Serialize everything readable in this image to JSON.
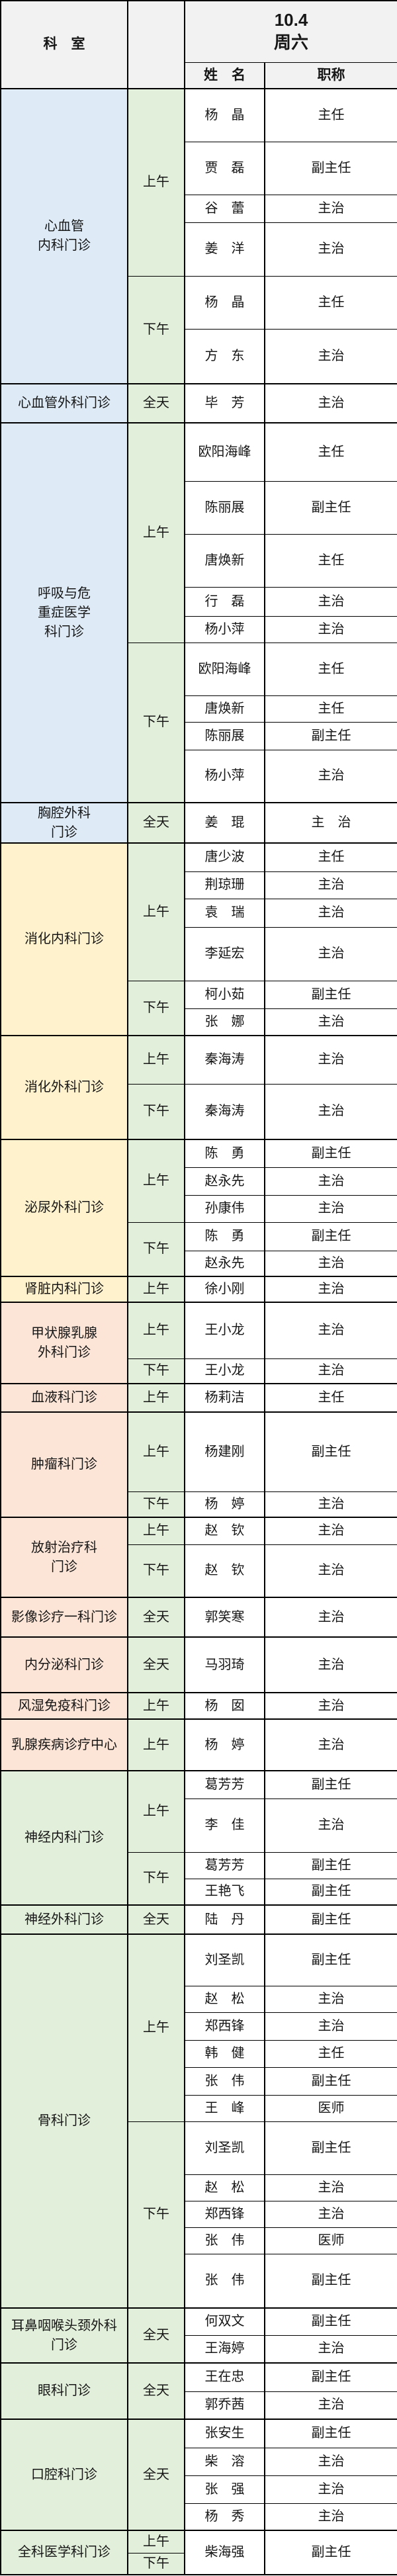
{
  "header": {
    "dept_col": "科　室",
    "date": "10.4",
    "weekday": "周六",
    "name_col": "姓　名",
    "title_col": "职称"
  },
  "colors": {
    "blue": "#DEEBF7",
    "yellow": "#FFF2CC",
    "orange": "#FCE4D6",
    "green": "#E2EFDA",
    "header_gray": "#F2F2F2",
    "border": "#000000"
  },
  "departments": [
    {
      "name": "心血管\n内科门诊",
      "color": "blue",
      "sessions": [
        {
          "time": "上午",
          "doctors": [
            {
              "name": "杨　晶",
              "title": "主任",
              "h": 80
            },
            {
              "name": "贾　磊",
              "title": "副主任",
              "h": 80
            },
            {
              "name": "谷　蕾",
              "title": "主治",
              "h": 42
            },
            {
              "name": "姜　洋",
              "title": "主治",
              "h": 81
            }
          ]
        },
        {
          "time": "下午",
          "doctors": [
            {
              "name": "杨　晶",
              "title": "主任",
              "h": 80
            },
            {
              "name": "方　东",
              "title": "主治",
              "h": 83
            }
          ]
        }
      ]
    },
    {
      "name": "心血管外科门诊",
      "color": "blue",
      "sessions": [
        {
          "time": "全天",
          "doctors": [
            {
              "name": "毕　芳",
              "title": "主治",
              "h": 59
            }
          ]
        }
      ]
    },
    {
      "name": "呼吸与危\n重症医学\n科门诊",
      "color": "blue",
      "sessions": [
        {
          "time": "上午",
          "doctors": [
            {
              "name": "欧阳海峰",
              "title": "主任",
              "h": 88
            },
            {
              "name": "陈丽展",
              "title": "副主任",
              "h": 80
            },
            {
              "name": "唐焕新",
              "title": "主任",
              "h": 80
            },
            {
              "name": "行　磊",
              "title": "主治",
              "h": 44
            },
            {
              "name": "杨小萍",
              "title": "主治",
              "h": 40
            }
          ]
        },
        {
          "time": "下午",
          "doctors": [
            {
              "name": "欧阳海峰",
              "title": "主任",
              "h": 80
            },
            {
              "name": "唐焕新",
              "title": "主任",
              "h": 40
            },
            {
              "name": "陈丽展",
              "title": "副主任",
              "h": 42
            },
            {
              "name": "杨小萍",
              "title": "主治",
              "h": 80
            }
          ]
        }
      ]
    },
    {
      "name": "胸腔外科\n门诊",
      "color": "blue",
      "sessions": [
        {
          "time": "全天",
          "doctors": [
            {
              "name": "姜　琨",
              "title": "主　治",
              "h": 61
            }
          ]
        }
      ]
    },
    {
      "name": "消化内科门诊",
      "color": "yellow",
      "sessions": [
        {
          "time": "上午",
          "doctors": [
            {
              "name": "唐少波",
              "title": "主任",
              "h": 43
            },
            {
              "name": "荆琼珊",
              "title": "主治",
              "h": 41
            },
            {
              "name": "袁　瑞",
              "title": "主治",
              "h": 43
            },
            {
              "name": "李延宏",
              "title": "主治",
              "h": 81
            }
          ]
        },
        {
          "time": "下午",
          "doctors": [
            {
              "name": "柯小茹",
              "title": "副主任",
              "h": 42
            },
            {
              "name": "张　娜",
              "title": "主治",
              "h": 41
            }
          ]
        }
      ]
    },
    {
      "name": "消化外科门诊",
      "color": "yellow",
      "sessions": [
        {
          "time": "上午",
          "doctors": [
            {
              "name": "秦海涛",
              "title": "主治",
              "h": 73
            }
          ]
        },
        {
          "time": "下午",
          "doctors": [
            {
              "name": "秦海涛",
              "title": "主治",
              "h": 84
            }
          ]
        }
      ]
    },
    {
      "name": "泌尿外科门诊",
      "color": "yellow",
      "sessions": [
        {
          "time": "上午",
          "doctors": [
            {
              "name": "陈　勇",
              "title": "副主任",
              "h": 42
            },
            {
              "name": "赵永先",
              "title": "主治",
              "h": 42
            },
            {
              "name": "孙康伟",
              "title": "主治",
              "h": 41
            }
          ]
        },
        {
          "time": "下午",
          "doctors": [
            {
              "name": "陈　勇",
              "title": "副主任",
              "h": 43
            },
            {
              "name": "赵永先",
              "title": "主治",
              "h": 39
            }
          ]
        }
      ]
    },
    {
      "name": "肾脏内科门诊",
      "color": "yellow",
      "sessions": [
        {
          "time": "上午",
          "doctors": [
            {
              "name": "徐小刚",
              "title": "主治",
              "h": 39
            }
          ]
        }
      ]
    },
    {
      "name": "甲状腺乳腺\n外科门诊",
      "color": "orange",
      "sessions": [
        {
          "time": "上午",
          "doctors": [
            {
              "name": "王小龙",
              "title": "主治",
              "h": 85
            }
          ]
        },
        {
          "time": "下午",
          "doctors": [
            {
              "name": "王小龙",
              "title": "主治",
              "h": 38
            }
          ]
        }
      ]
    },
    {
      "name": "血液科门诊",
      "color": "orange",
      "sessions": [
        {
          "time": "上午",
          "doctors": [
            {
              "name": "杨莉洁",
              "title": "主任",
              "h": 43
            }
          ]
        }
      ]
    },
    {
      "name": "肿瘤科门诊",
      "color": "orange",
      "sessions": [
        {
          "time": "上午",
          "doctors": [
            {
              "name": "杨建刚",
              "title": "副主任",
              "h": 120
            }
          ]
        },
        {
          "time": "下午",
          "doctors": [
            {
              "name": "杨　婷",
              "title": "主治",
              "h": 39
            }
          ]
        }
      ]
    },
    {
      "name": "放射治疗科\n门诊",
      "color": "orange",
      "sessions": [
        {
          "time": "上午",
          "doctors": [
            {
              "name": "赵　钦",
              "title": "主治",
              "h": 41
            }
          ]
        },
        {
          "time": "下午",
          "doctors": [
            {
              "name": "赵　钦",
              "title": "主治",
              "h": 80
            }
          ]
        }
      ]
    },
    {
      "name": "影像诊疗一科门诊",
      "color": "orange",
      "sessions": [
        {
          "time": "全天",
          "doctors": [
            {
              "name": "郭笑寒",
              "title": "主治",
              "h": 60
            }
          ]
        }
      ]
    },
    {
      "name": "内分泌科门诊",
      "color": "orange",
      "sessions": [
        {
          "time": "全天",
          "doctors": [
            {
              "name": "马羽琦",
              "title": "主治",
              "h": 84
            }
          ]
        }
      ]
    },
    {
      "name": "风湿免疫科门诊",
      "color": "orange",
      "sessions": [
        {
          "time": "上午",
          "doctors": [
            {
              "name": "杨　囡",
              "title": "主治",
              "h": 40
            }
          ]
        }
      ]
    },
    {
      "name": "乳腺疾病诊疗中心",
      "color": "orange",
      "sessions": [
        {
          "time": "上午",
          "doctors": [
            {
              "name": "杨　婷",
              "title": "主治",
              "h": 78
            }
          ]
        }
      ]
    },
    {
      "name": "神经内科门诊",
      "color": "green",
      "sessions": [
        {
          "time": "上午",
          "doctors": [
            {
              "name": "葛芳芳",
              "title": "副主任",
              "h": 42
            },
            {
              "name": "李　佳",
              "title": "主治",
              "h": 81
            }
          ]
        },
        {
          "time": "下午",
          "doctors": [
            {
              "name": "葛芳芳",
              "title": "副主任",
              "h": 40
            },
            {
              "name": "王艳飞",
              "title": "副主任",
              "h": 40
            }
          ]
        }
      ]
    },
    {
      "name": "神经外科门诊",
      "color": "green",
      "sessions": [
        {
          "time": "全天",
          "doctors": [
            {
              "name": "陆　丹",
              "title": "副主任",
              "h": 44
            }
          ]
        }
      ]
    },
    {
      "name": "骨科门诊",
      "color": "green",
      "sessions": [
        {
          "time": "上午",
          "doctors": [
            {
              "name": "刘圣凯",
              "title": "副主任",
              "h": 78
            },
            {
              "name": "赵　松",
              "title": "主治",
              "h": 40
            },
            {
              "name": "郑西锋",
              "title": "主治",
              "h": 42
            },
            {
              "name": "韩　健",
              "title": "主任",
              "h": 41
            },
            {
              "name": "张　伟",
              "title": "副主任",
              "h": 42
            },
            {
              "name": "王　峰",
              "title": "医师",
              "h": 40
            }
          ]
        },
        {
          "time": "下午",
          "doctors": [
            {
              "name": "刘圣凯",
              "title": "副主任",
              "h": 80
            },
            {
              "name": "赵　松",
              "title": "主治",
              "h": 40
            },
            {
              "name": "郑西锋",
              "title": "主治",
              "h": 40
            },
            {
              "name": "张　伟",
              "title": "医师",
              "h": 40
            },
            {
              "name": "张　伟",
              "title": "副主任",
              "h": 82
            }
          ]
        }
      ]
    },
    {
      "name": "耳鼻咽喉头颈外科\n门诊",
      "color": "green",
      "sessions": [
        {
          "time": "全天",
          "doctors": [
            {
              "name": "何双文",
              "title": "副主任",
              "h": 41
            },
            {
              "name": "王海婷",
              "title": "主治",
              "h": 42
            }
          ]
        }
      ]
    },
    {
      "name": "眼科门诊",
      "color": "green",
      "sessions": [
        {
          "time": "全天",
          "doctors": [
            {
              "name": "王在忠",
              "title": "副主任",
              "h": 43
            },
            {
              "name": "郭乔茜",
              "title": "主治",
              "h": 42
            }
          ]
        }
      ]
    },
    {
      "name": "口腔科门诊",
      "color": "green",
      "sessions": [
        {
          "time": "全天",
          "doctors": [
            {
              "name": "张安生",
              "title": "副主任",
              "h": 43
            },
            {
              "name": "柴　溶",
              "title": "主治",
              "h": 42
            },
            {
              "name": "张　强",
              "title": "主治",
              "h": 42
            },
            {
              "name": "杨　秀",
              "title": "主治",
              "h": 41
            }
          ]
        }
      ]
    },
    {
      "name": "全科医学科门诊",
      "color": "green",
      "merged_doctor": {
        "name": "柴海强",
        "title": "副主任"
      },
      "sessions": [
        {
          "time": "上午",
          "h": 34
        },
        {
          "time": "下午",
          "h": 33
        }
      ]
    }
  ]
}
